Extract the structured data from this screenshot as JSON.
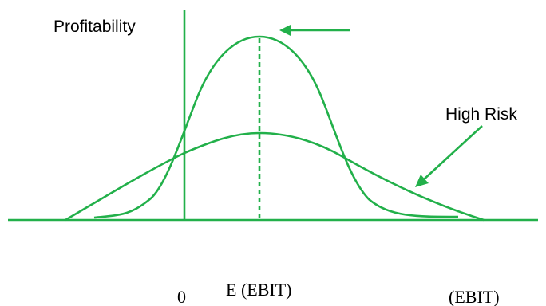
{
  "diagram": {
    "y_axis_label": "Profitability",
    "curve_label": "High Risk",
    "x_tick_zero": "0",
    "x_tick_expected": "E (EBIT)",
    "x_axis_label": "(EBIT)"
  },
  "colors": {
    "curve": "#22b04a",
    "text": "#000000",
    "background": "#ffffff"
  }
}
